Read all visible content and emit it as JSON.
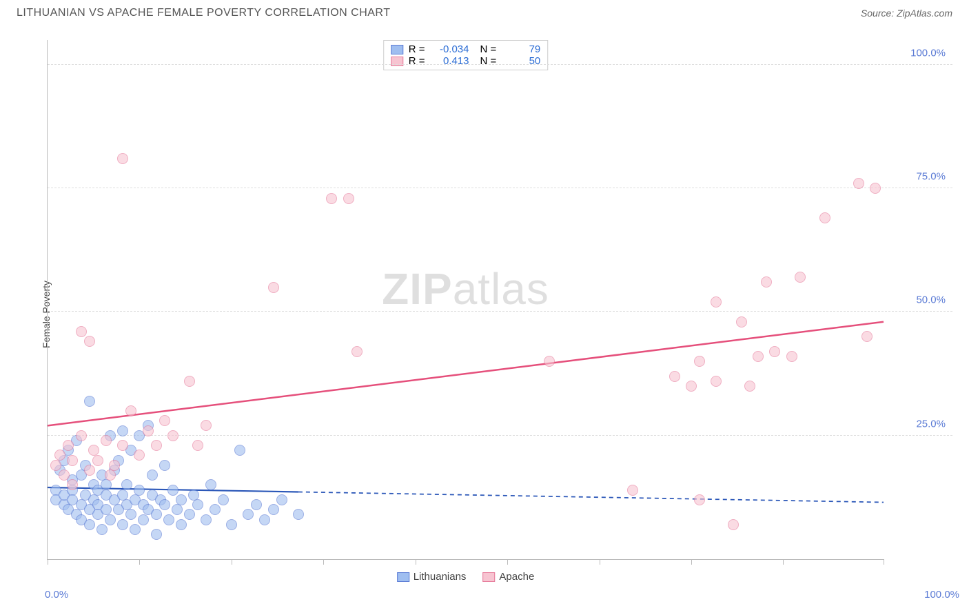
{
  "title": "LITHUANIAN VS APACHE FEMALE POVERTY CORRELATION CHART",
  "source": "Source: ZipAtlas.com",
  "watermark_zip": "ZIP",
  "watermark_atlas": "atlas",
  "chart": {
    "type": "scatter",
    "ylabel": "Female Poverty",
    "xlim": [
      0,
      100
    ],
    "ylim": [
      0,
      105
    ],
    "yticks": [
      25,
      50,
      75,
      100
    ],
    "ytick_labels": [
      "25.0%",
      "50.0%",
      "75.0%",
      "100.0%"
    ],
    "xtick_positions": [
      0,
      11,
      22,
      33,
      44,
      55,
      66,
      77,
      88,
      100
    ],
    "xaxis_labels": {
      "left": "0.0%",
      "right": "100.0%"
    },
    "background_color": "#ffffff",
    "grid_color": "#dddddd",
    "series": [
      {
        "name": "Lithuanians",
        "color_fill": "#9fbef0",
        "color_stroke": "#5b7bd5",
        "fill_opacity": 0.6,
        "marker_radius": 8,
        "R": "-0.034",
        "N": "79",
        "trend": {
          "y_at_x0": 14.5,
          "y_at_x100": 11.5,
          "solid_until_x": 30,
          "color": "#2b57b8",
          "width": 2.2
        },
        "points": [
          [
            1,
            14
          ],
          [
            1,
            12
          ],
          [
            1.5,
            18
          ],
          [
            2,
            11
          ],
          [
            2,
            13
          ],
          [
            2,
            20
          ],
          [
            2.5,
            22
          ],
          [
            2.5,
            10
          ],
          [
            3,
            14
          ],
          [
            3,
            16
          ],
          [
            3,
            12
          ],
          [
            3.5,
            24
          ],
          [
            3.5,
            9
          ],
          [
            4,
            17
          ],
          [
            4,
            11
          ],
          [
            4,
            8
          ],
          [
            4.5,
            19
          ],
          [
            4.5,
            13
          ],
          [
            5,
            32
          ],
          [
            5,
            10
          ],
          [
            5,
            7
          ],
          [
            5.5,
            15
          ],
          [
            5.5,
            12
          ],
          [
            6,
            11
          ],
          [
            6,
            14
          ],
          [
            6,
            9
          ],
          [
            6.5,
            17
          ],
          [
            6.5,
            6
          ],
          [
            7,
            13
          ],
          [
            7,
            10
          ],
          [
            7,
            15
          ],
          [
            7.5,
            25
          ],
          [
            7.5,
            8
          ],
          [
            8,
            12
          ],
          [
            8,
            18
          ],
          [
            8.5,
            20
          ],
          [
            8.5,
            10
          ],
          [
            9,
            7
          ],
          [
            9,
            13
          ],
          [
            9,
            26
          ],
          [
            9.5,
            11
          ],
          [
            9.5,
            15
          ],
          [
            10,
            9
          ],
          [
            10,
            22
          ],
          [
            10.5,
            12
          ],
          [
            10.5,
            6
          ],
          [
            11,
            14
          ],
          [
            11,
            25
          ],
          [
            11.5,
            8
          ],
          [
            11.5,
            11
          ],
          [
            12,
            27
          ],
          [
            12,
            10
          ],
          [
            12.5,
            13
          ],
          [
            12.5,
            17
          ],
          [
            13,
            9
          ],
          [
            13,
            5
          ],
          [
            13.5,
            12
          ],
          [
            14,
            19
          ],
          [
            14,
            11
          ],
          [
            14.5,
            8
          ],
          [
            15,
            14
          ],
          [
            15.5,
            10
          ],
          [
            16,
            7
          ],
          [
            16,
            12
          ],
          [
            17,
            9
          ],
          [
            17.5,
            13
          ],
          [
            18,
            11
          ],
          [
            19,
            8
          ],
          [
            19.5,
            15
          ],
          [
            20,
            10
          ],
          [
            21,
            12
          ],
          [
            22,
            7
          ],
          [
            23,
            22
          ],
          [
            24,
            9
          ],
          [
            25,
            11
          ],
          [
            26,
            8
          ],
          [
            27,
            10
          ],
          [
            28,
            12
          ],
          [
            30,
            9
          ]
        ]
      },
      {
        "name": "Apache",
        "color_fill": "#f7c4d1",
        "color_stroke": "#e67a9a",
        "fill_opacity": 0.6,
        "marker_radius": 8,
        "R": "0.413",
        "N": "50",
        "trend": {
          "y_at_x0": 27,
          "y_at_x100": 48,
          "solid_until_x": 100,
          "color": "#e54f7b",
          "width": 2.5
        },
        "points": [
          [
            1,
            19
          ],
          [
            1.5,
            21
          ],
          [
            2,
            17
          ],
          [
            2.5,
            23
          ],
          [
            3,
            20
          ],
          [
            3,
            15
          ],
          [
            4,
            25
          ],
          [
            4,
            46
          ],
          [
            5,
            18
          ],
          [
            5,
            44
          ],
          [
            5.5,
            22
          ],
          [
            6,
            20
          ],
          [
            7,
            24
          ],
          [
            7.5,
            17
          ],
          [
            8,
            19
          ],
          [
            9,
            81
          ],
          [
            9,
            23
          ],
          [
            10,
            30
          ],
          [
            11,
            21
          ],
          [
            12,
            26
          ],
          [
            13,
            23
          ],
          [
            14,
            28
          ],
          [
            15,
            25
          ],
          [
            17,
            36
          ],
          [
            18,
            23
          ],
          [
            19,
            27
          ],
          [
            27,
            55
          ],
          [
            34,
            73
          ],
          [
            36,
            73
          ],
          [
            37,
            42
          ],
          [
            60,
            40
          ],
          [
            70,
            14
          ],
          [
            75,
            37
          ],
          [
            77,
            35
          ],
          [
            78,
            40
          ],
          [
            78,
            12
          ],
          [
            80,
            52
          ],
          [
            80,
            36
          ],
          [
            82,
            7
          ],
          [
            83,
            48
          ],
          [
            84,
            35
          ],
          [
            85,
            41
          ],
          [
            86,
            56
          ],
          [
            87,
            42
          ],
          [
            89,
            41
          ],
          [
            90,
            57
          ],
          [
            93,
            69
          ],
          [
            97,
            76
          ],
          [
            98,
            45
          ],
          [
            99,
            75
          ]
        ]
      }
    ],
    "legend_top_labels": {
      "R": "R =",
      "N": "N ="
    },
    "legend_bottom": [
      {
        "label": "Lithuanians",
        "fill": "#9fbef0",
        "stroke": "#5b7bd5"
      },
      {
        "label": "Apache",
        "fill": "#f7c4d1",
        "stroke": "#e67a9a"
      }
    ]
  }
}
